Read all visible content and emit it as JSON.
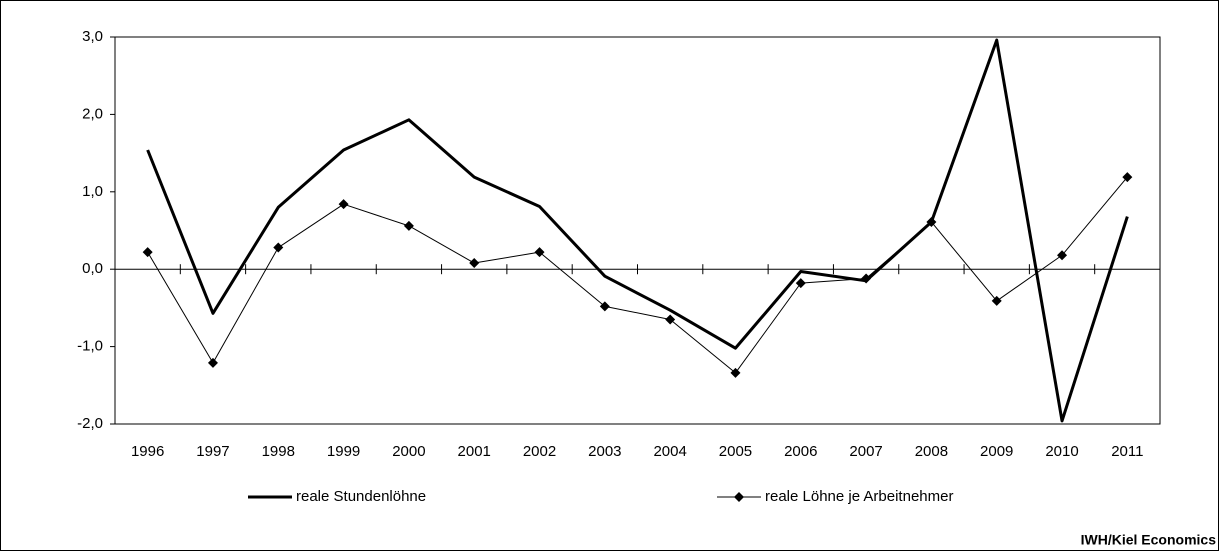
{
  "chart_data": {
    "type": "line",
    "categories": [
      "1996",
      "1997",
      "1998",
      "1999",
      "2000",
      "2001",
      "2002",
      "2003",
      "2004",
      "2005",
      "2006",
      "2007",
      "2008",
      "2009",
      "2010",
      "2011"
    ],
    "series": [
      {
        "name": "reale Stundenlöhne",
        "color": "#000000",
        "values": [
          1.54,
          -0.57,
          0.8,
          1.54,
          1.93,
          1.19,
          0.81,
          -0.09,
          -0.53,
          -1.02,
          -0.03,
          -0.15,
          0.61,
          2.96,
          -1.96,
          0.68
        ]
      },
      {
        "name": "reale Löhne je Arbeitnehmer",
        "color": "#000000",
        "values": [
          0.22,
          -1.21,
          0.28,
          0.84,
          0.56,
          0.08,
          0.22,
          -0.48,
          -0.65,
          -1.34,
          -0.18,
          -0.12,
          0.61,
          -0.41,
          0.18,
          1.19
        ]
      }
    ],
    "ylim": [
      -2,
      3
    ],
    "yticks": [
      {
        "value": -2,
        "label": "-2,0"
      },
      {
        "value": -1,
        "label": "-1,0"
      },
      {
        "value": 0,
        "label": "0,0"
      },
      {
        "value": 1,
        "label": "1,0"
      },
      {
        "value": 2,
        "label": "2,0"
      },
      {
        "value": 3,
        "label": "3,0"
      }
    ],
    "source": "IWH/Kiel Economics"
  }
}
